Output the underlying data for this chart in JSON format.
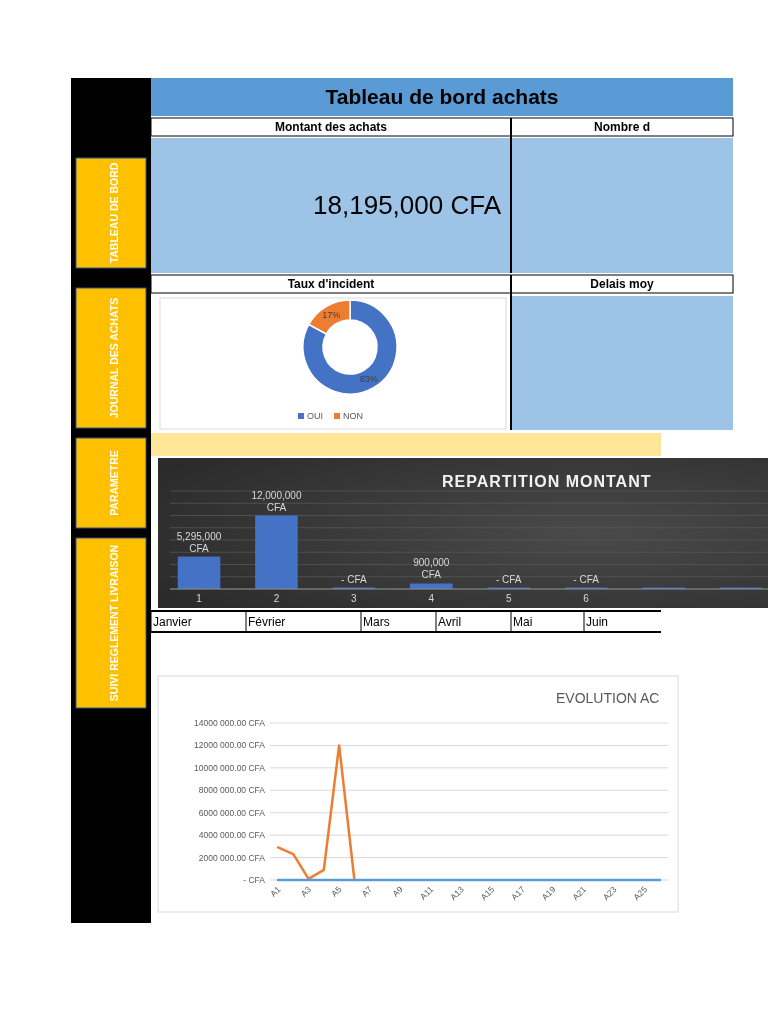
{
  "chart_data": [
    {
      "type": "other",
      "title": "Tableau de bord achats",
      "annotations": [
        "Montant des achats",
        "18,195,000 CFA",
        "Nombre d",
        "Delais moy",
        "TABLEAU DE BORD",
        "JOURNAL DES ACHATS",
        "PARAMETRE",
        "SUIVI REGLEMENT LIVRAISON",
        "Janvier",
        "Février",
        "Mars",
        "Avril",
        "Mai",
        "Juin"
      ]
    },
    {
      "type": "donut",
      "title": "Taux d'incident",
      "categories": [
        "OUI",
        "NON"
      ],
      "values": [
        83,
        17
      ],
      "colors": [
        "#4472c4",
        "#ed7d31"
      ],
      "value_labels": [
        "83%",
        "17%"
      ],
      "legend": "bottom"
    },
    {
      "type": "bar",
      "title": "REPARTITION MONTANT",
      "categories": [
        "1",
        "2",
        "3",
        "4",
        "5",
        "6",
        null,
        null
      ],
      "values": [
        5295000,
        12000000,
        0,
        900000,
        0,
        0,
        0,
        0
      ],
      "color": "#4472c4",
      "value_labels": [
        "5,295,000 CFA",
        "12,000,000 CFA",
        "- CFA",
        "900,000 CFA",
        "- CFA",
        "- CFA",
        null,
        null
      ],
      "ylim": [
        0,
        16000000
      ],
      "yticks": [
        {
          "value": 0,
          "label": null
        },
        {
          "value": 2000000,
          "label": null
        },
        {
          "value": 4000000,
          "label": null
        },
        {
          "value": 6000000,
          "label": null
        },
        {
          "value": 8000000,
          "label": null
        },
        {
          "value": 10000000,
          "label": null
        },
        {
          "value": 12000000,
          "label": null
        },
        {
          "value": 14000000,
          "label": null
        },
        {
          "value": 16000000,
          "label": null
        }
      ],
      "grid": "y",
      "tick_labels": "x"
    },
    {
      "type": "line",
      "title": "EVOLUTION AC",
      "categories": [
        "A1",
        null,
        "A3",
        null,
        "A5",
        null,
        "A7",
        null,
        "A9",
        null,
        "A11",
        null,
        "A13",
        null,
        "A15",
        null,
        "A17",
        null,
        "A19",
        null,
        "A21",
        null,
        "A23",
        null,
        "A25",
        null
      ],
      "series": [
        {
          "color": "#ed7d31",
          "values": [
            2900000,
            2300000,
            100000,
            900000,
            12000000,
            0,
            null,
            null,
            null,
            null,
            null,
            null,
            null,
            null,
            null,
            null,
            null,
            null,
            null,
            null,
            null,
            null,
            null,
            null,
            null,
            null
          ]
        },
        {
          "color": "#5b9bd5",
          "values": [
            0,
            0,
            0,
            0,
            0,
            0,
            0,
            0,
            0,
            0,
            0,
            0,
            0,
            0,
            0,
            0,
            0,
            0,
            0,
            0,
            0,
            0,
            0,
            0,
            0,
            0
          ]
        }
      ],
      "ylim": [
        0,
        14000000
      ],
      "yticks": [
        {
          "value": 0,
          "label": "-   CFA"
        },
        {
          "value": 2000000,
          "label": "2000 000.00 CFA"
        },
        {
          "value": 4000000,
          "label": "4000 000.00 CFA"
        },
        {
          "value": 6000000,
          "label": "6000 000.00 CFA"
        },
        {
          "value": 8000000,
          "label": "8000 000.00 CFA"
        },
        {
          "value": 10000000,
          "label": "10000 000.00 CFA"
        },
        {
          "value": 12000000,
          "label": "12000 000.00 CFA"
        },
        {
          "value": 14000000,
          "label": "14000 000.00 CFA"
        }
      ],
      "grid": "y",
      "line_style": "solid",
      "marker": "none"
    }
  ]
}
